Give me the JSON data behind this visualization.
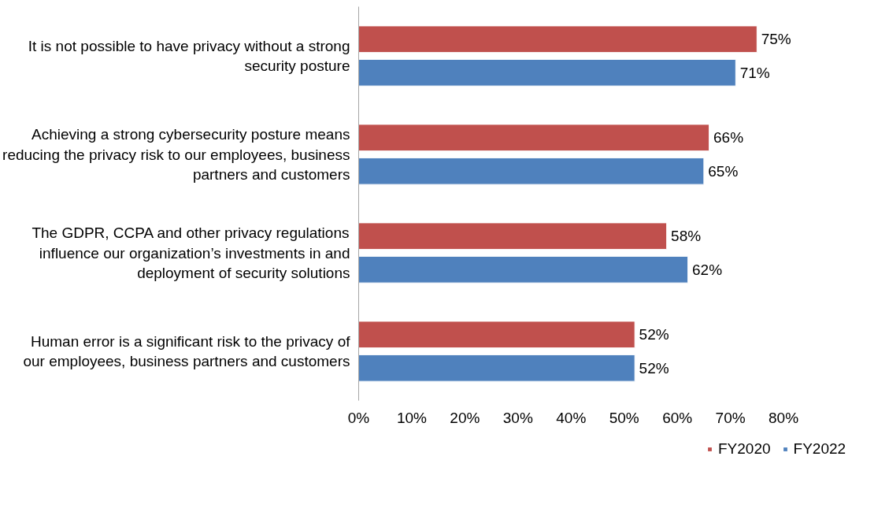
{
  "chart_data": {
    "type": "bar",
    "orientation": "horizontal",
    "categories": [
      "It is not possible to have privacy without a strong security posture",
      "Achieving a strong cybersecurity posture means reducing the privacy risk to our employees, business partners and customers",
      "The GDPR, CCPA and other privacy regulations influence our organization’s investments in and deployment of security solutions",
      "Human error is a significant risk to the privacy of our employees, business partners and customers"
    ],
    "series": [
      {
        "name": "FY2020",
        "color": "#c0504d",
        "values": [
          75,
          66,
          58,
          52
        ],
        "value_labels": [
          "75%",
          "66%",
          "58%",
          "52%"
        ]
      },
      {
        "name": "FY2022",
        "color": "#4f81bd",
        "values": [
          71,
          65,
          62,
          52
        ],
        "value_labels": [
          "71%",
          "65%",
          "62%",
          "52%"
        ]
      }
    ],
    "xlim": [
      0,
      80
    ],
    "xticks": [
      {
        "value": 0,
        "label": "0%"
      },
      {
        "value": 10,
        "label": "10%"
      },
      {
        "value": 20,
        "label": "20%"
      },
      {
        "value": 30,
        "label": "30%"
      },
      {
        "value": 40,
        "label": "40%"
      },
      {
        "value": 50,
        "label": "50%"
      },
      {
        "value": 60,
        "label": "60%"
      },
      {
        "value": 70,
        "label": "70%"
      },
      {
        "value": 80,
        "label": "80%"
      }
    ],
    "grid": false,
    "legend": "bottom"
  }
}
